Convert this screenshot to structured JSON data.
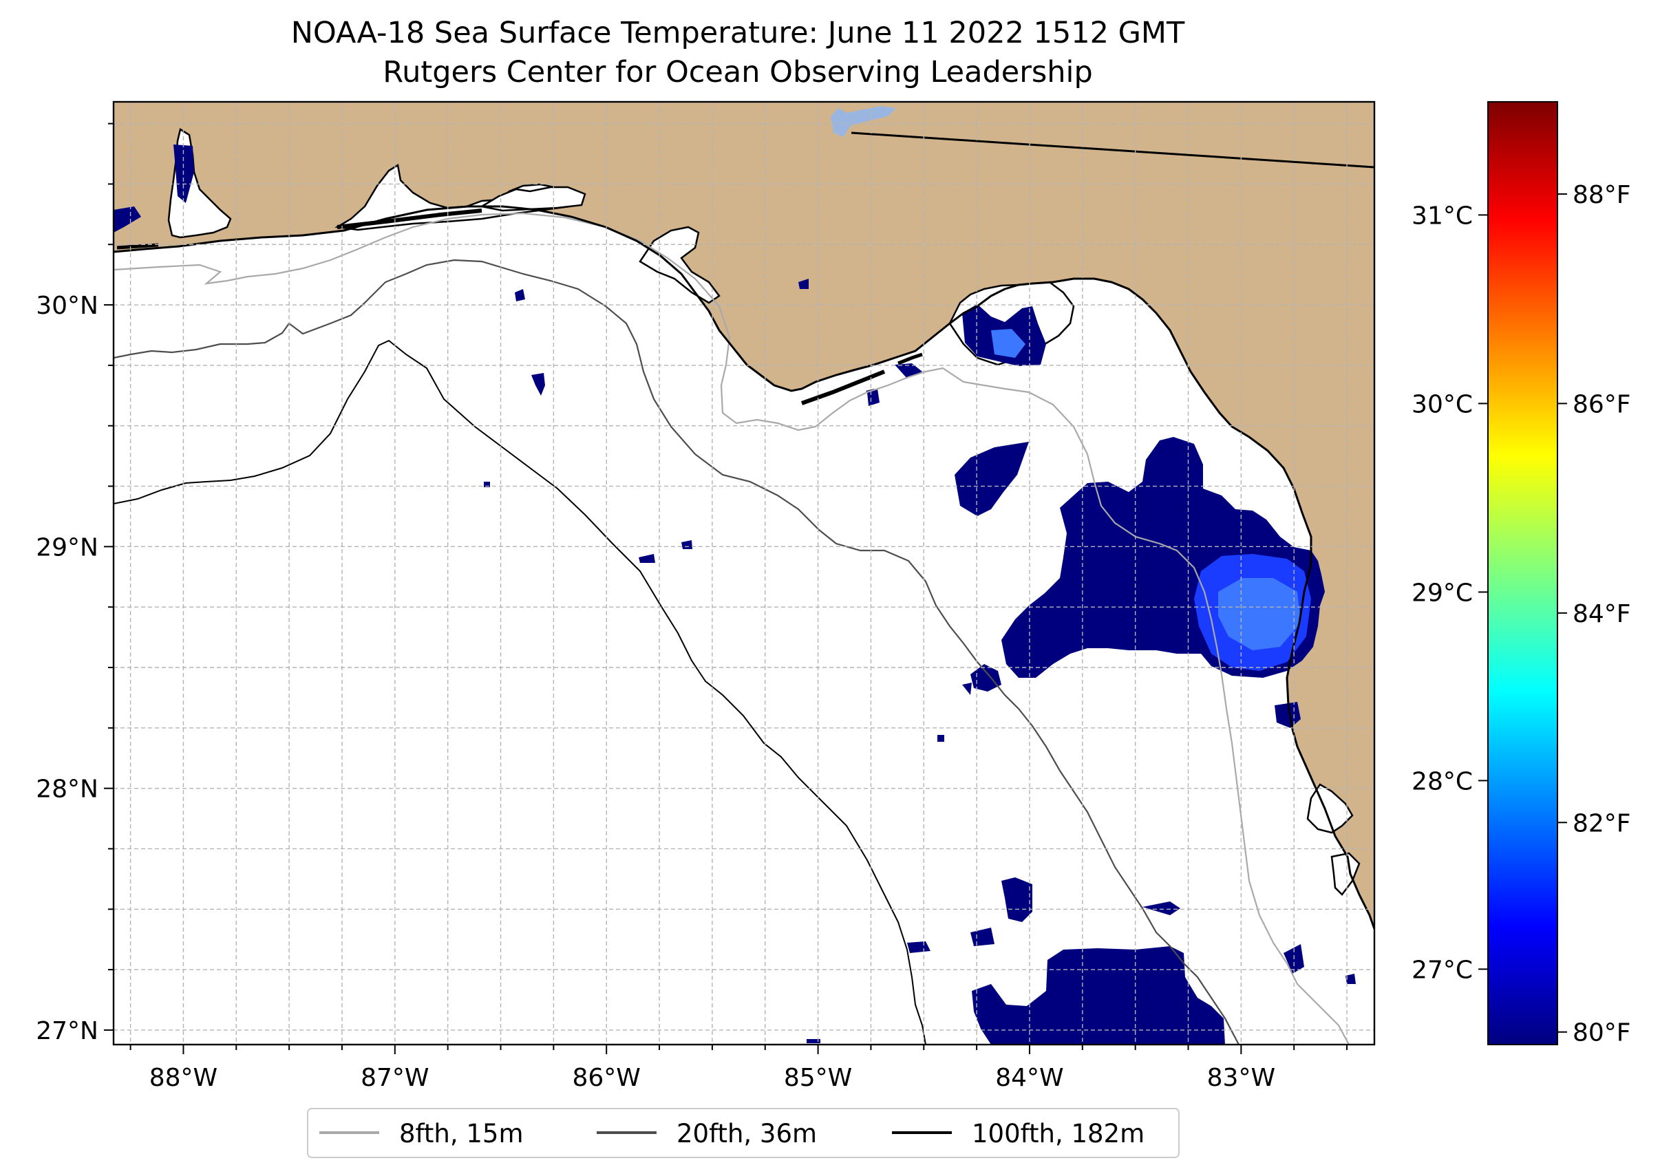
{
  "title": {
    "line1": "NOAA-18 Sea Surface Temperature: June 11 2022 1512 GMT",
    "line2": "Rutgers Center for Ocean Observing Leadership"
  },
  "map": {
    "lon_range": [
      -88.33,
      -82.37
    ],
    "lat_range": [
      26.94,
      30.84
    ],
    "lon_ticks": [
      {
        "value": -88,
        "label": "88°W"
      },
      {
        "value": -87,
        "label": "87°W"
      },
      {
        "value": -86,
        "label": "86°W"
      },
      {
        "value": -85,
        "label": "85°W"
      },
      {
        "value": -84,
        "label": "84°W"
      },
      {
        "value": -83,
        "label": "83°W"
      }
    ],
    "lat_ticks": [
      {
        "value": 30,
        "label": "30°N"
      },
      {
        "value": 29,
        "label": "29°N"
      },
      {
        "value": 28,
        "label": "28°N"
      },
      {
        "value": 27,
        "label": "27°N"
      }
    ],
    "minor_grid_step_deg": 0.25,
    "colors": {
      "land": "#d2b48c",
      "water": "#ffffff",
      "lake": "#9ab6e0",
      "coast": "#000000",
      "grid": "#b4b4b4"
    }
  },
  "colorbar": {
    "colors": [
      "#00007f",
      "#0000ff",
      "#007fff",
      "#00ffff",
      "#7fff7f",
      "#ffff00",
      "#ff7f00",
      "#ff0000",
      "#7f0000"
    ],
    "celsius_range": [
      26.6,
      31.6
    ],
    "celsius_ticks": [
      {
        "value": 27,
        "label": "27°C"
      },
      {
        "value": 28,
        "label": "28°C"
      },
      {
        "value": 29,
        "label": "29°C"
      },
      {
        "value": 30,
        "label": "30°C"
      },
      {
        "value": 31,
        "label": "31°C"
      }
    ],
    "fahrenheit_ticks": [
      {
        "value": 80,
        "label": "80°F"
      },
      {
        "value": 82,
        "label": "82°F"
      },
      {
        "value": 84,
        "label": "84°F"
      },
      {
        "value": 86,
        "label": "86°F"
      },
      {
        "value": 88,
        "label": "88°F"
      }
    ]
  },
  "legend": {
    "items": [
      {
        "label": "8fth, 15m",
        "color": "#a9a9a9"
      },
      {
        "label": "20fth, 36m",
        "color": "#4d4d4d"
      },
      {
        "label": "100fth, 182m",
        "color": "#000000"
      }
    ]
  },
  "sst_patches": {
    "deep_blue": "#00007f",
    "mid_blue": "#1a3cff",
    "light_blue": "#3c78ff"
  }
}
